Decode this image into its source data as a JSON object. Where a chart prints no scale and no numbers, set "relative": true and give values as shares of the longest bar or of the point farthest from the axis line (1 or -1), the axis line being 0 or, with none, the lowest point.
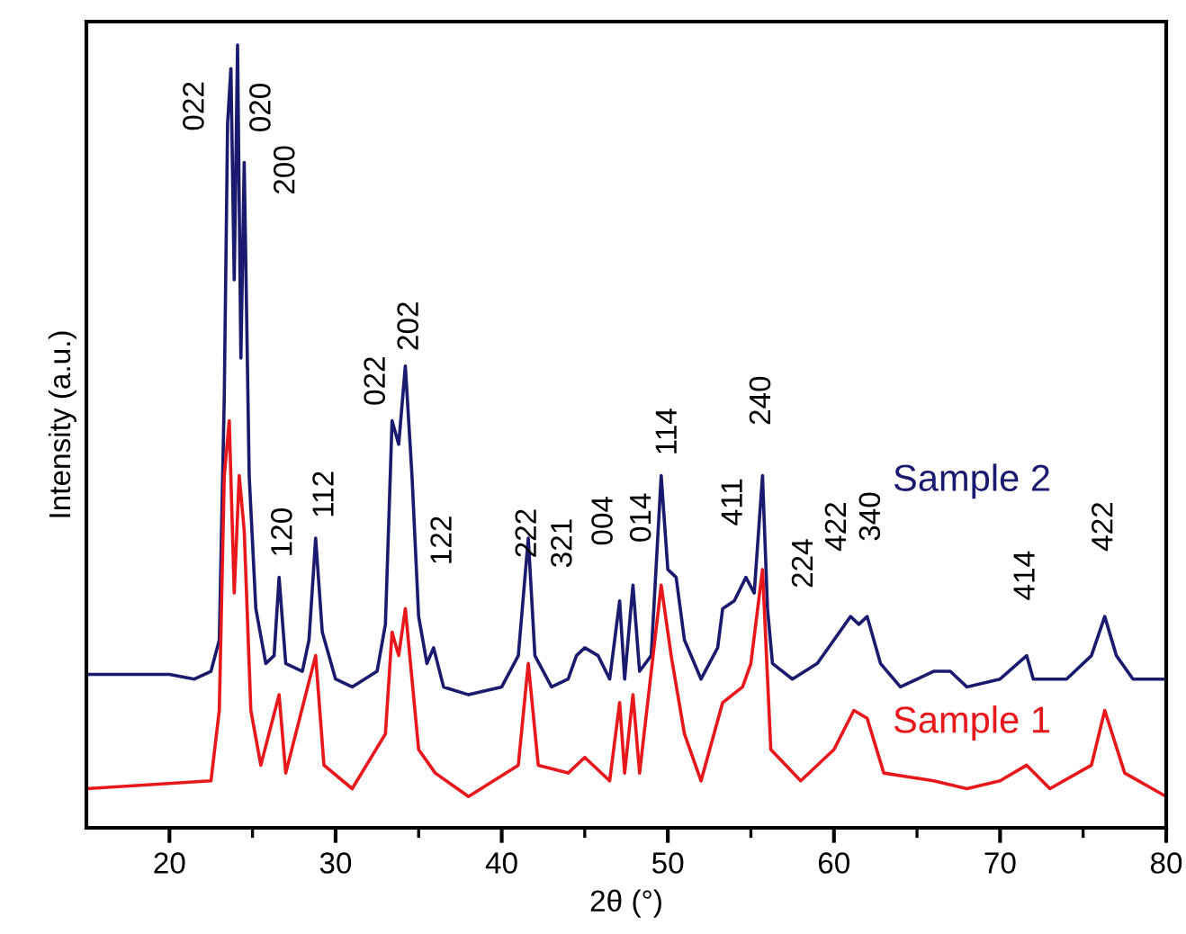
{
  "chart_data": {
    "type": "line",
    "relative": true,
    "xlabel": "2θ (°)",
    "ylabel": "Intensity (a.u.)",
    "xlim": [
      15,
      80
    ],
    "xticks": [
      {
        "value": 20,
        "label": "20"
      },
      {
        "value": 25,
        "label": null
      },
      {
        "value": 30,
        "label": "30"
      },
      {
        "value": 35,
        "label": null
      },
      {
        "value": 40,
        "label": "40"
      },
      {
        "value": 45,
        "label": null
      },
      {
        "value": 50,
        "label": "50"
      },
      {
        "value": 55,
        "label": null
      },
      {
        "value": 60,
        "label": "60"
      },
      {
        "value": 65,
        "label": null
      },
      {
        "value": 70,
        "label": "70"
      },
      {
        "value": 75,
        "label": null
      },
      {
        "value": 80,
        "label": "80"
      }
    ],
    "grid": false,
    "legend": false,
    "marker": "none",
    "line_style": "solid",
    "series": [
      {
        "name": "Sample 2",
        "color": "#1a1a6e",
        "x": [
          15,
          20,
          21.5,
          22.5,
          23,
          23.3,
          23.5,
          23.7,
          23.9,
          24.1,
          24.3,
          24.5,
          24.8,
          25.2,
          25.8,
          26.3,
          26.6,
          27,
          28,
          28.4,
          28.8,
          29.2,
          30,
          31,
          32.5,
          33,
          33.4,
          33.8,
          34.2,
          34.6,
          35,
          35.5,
          35.9,
          36.5,
          38,
          40,
          41,
          41.6,
          42,
          43,
          44,
          44.5,
          45,
          45.8,
          46.5,
          47.1,
          47.4,
          47.9,
          48.3,
          49,
          49.6,
          50,
          50.5,
          51,
          52,
          53,
          53.3,
          54,
          54.7,
          55.2,
          55.7,
          56,
          56.3,
          57.5,
          59,
          60,
          61,
          61.5,
          62,
          62.8,
          64,
          66,
          67,
          68,
          70,
          71.6,
          72,
          74,
          75.5,
          76.3,
          77,
          78,
          80
        ],
        "values": [
          0.196,
          0.196,
          0.19,
          0.2,
          0.24,
          0.55,
          0.9,
          0.97,
          0.7,
          1.0,
          0.6,
          0.85,
          0.45,
          0.28,
          0.21,
          0.22,
          0.32,
          0.21,
          0.2,
          0.24,
          0.37,
          0.25,
          0.19,
          0.18,
          0.2,
          0.26,
          0.52,
          0.49,
          0.59,
          0.45,
          0.27,
          0.21,
          0.23,
          0.18,
          0.17,
          0.18,
          0.22,
          0.37,
          0.22,
          0.18,
          0.19,
          0.22,
          0.23,
          0.22,
          0.19,
          0.29,
          0.19,
          0.31,
          0.2,
          0.22,
          0.45,
          0.33,
          0.32,
          0.24,
          0.19,
          0.23,
          0.28,
          0.29,
          0.32,
          0.3,
          0.45,
          0.28,
          0.21,
          0.19,
          0.21,
          0.24,
          0.27,
          0.26,
          0.27,
          0.21,
          0.18,
          0.2,
          0.2,
          0.18,
          0.19,
          0.22,
          0.19,
          0.19,
          0.22,
          0.27,
          0.22,
          0.19,
          0.19
        ]
      },
      {
        "name": "Sample 1",
        "color": "#e8171b",
        "x": [
          15,
          22.5,
          23,
          23.3,
          23.6,
          23.9,
          24.2,
          24.5,
          24.9,
          25.5,
          26.6,
          27,
          28.8,
          29.3,
          31,
          33,
          33.4,
          33.8,
          34.2,
          35,
          36,
          38,
          41,
          41.6,
          42.2,
          44,
          45,
          46.5,
          47.1,
          47.4,
          47.9,
          48.3,
          49.6,
          50.2,
          51,
          52,
          53.3,
          54.5,
          55,
          55.7,
          56.2,
          58,
          60,
          61.2,
          62,
          63,
          66,
          68,
          70,
          71.6,
          73,
          75.5,
          76.3,
          77.5,
          80
        ],
        "values": [
          0.05,
          0.06,
          0.15,
          0.45,
          0.52,
          0.3,
          0.45,
          0.38,
          0.15,
          0.08,
          0.17,
          0.07,
          0.22,
          0.08,
          0.05,
          0.12,
          0.25,
          0.22,
          0.28,
          0.1,
          0.07,
          0.04,
          0.08,
          0.21,
          0.08,
          0.07,
          0.09,
          0.06,
          0.16,
          0.07,
          0.17,
          0.07,
          0.31,
          0.22,
          0.12,
          0.06,
          0.16,
          0.18,
          0.21,
          0.33,
          0.1,
          0.06,
          0.1,
          0.15,
          0.14,
          0.07,
          0.06,
          0.05,
          0.06,
          0.08,
          0.05,
          0.08,
          0.15,
          0.07,
          0.04
        ]
      }
    ],
    "annotations": [
      {
        "text": "022",
        "x": 23.7,
        "y": 0.97
      },
      {
        "text": "020",
        "x": 24.1,
        "y": 1.0
      },
      {
        "text": "200",
        "x": 24.5,
        "y": 0.85
      },
      {
        "text": "120",
        "x": 26.6,
        "y": 0.32
      },
      {
        "text": "112",
        "x": 28.8,
        "y": 0.37
      },
      {
        "text": "022",
        "x": 33.4,
        "y": 0.52
      },
      {
        "text": "202",
        "x": 34.2,
        "y": 0.59
      },
      {
        "text": "122",
        "x": 35.9,
        "y": 0.23
      },
      {
        "text": "222",
        "x": 41.6,
        "y": 0.37
      },
      {
        "text": "321",
        "x": 44.5,
        "y": 0.22
      },
      {
        "text": "004",
        "x": 47.1,
        "y": 0.29
      },
      {
        "text": "014",
        "x": 47.9,
        "y": 0.31
      },
      {
        "text": "114",
        "x": 49.6,
        "y": 0.45
      },
      {
        "text": "411",
        "x": 54,
        "y": 0.29
      },
      {
        "text": "240",
        "x": 55.7,
        "y": 0.45
      },
      {
        "text": "224",
        "x": 59,
        "y": 0.21
      },
      {
        "text": "422",
        "x": 61,
        "y": 0.27
      },
      {
        "text": "340",
        "x": 62,
        "y": 0.27
      },
      {
        "text": "414",
        "x": 71.6,
        "y": 0.22
      },
      {
        "text": "422",
        "x": 76.3,
        "y": 0.27
      }
    ]
  }
}
